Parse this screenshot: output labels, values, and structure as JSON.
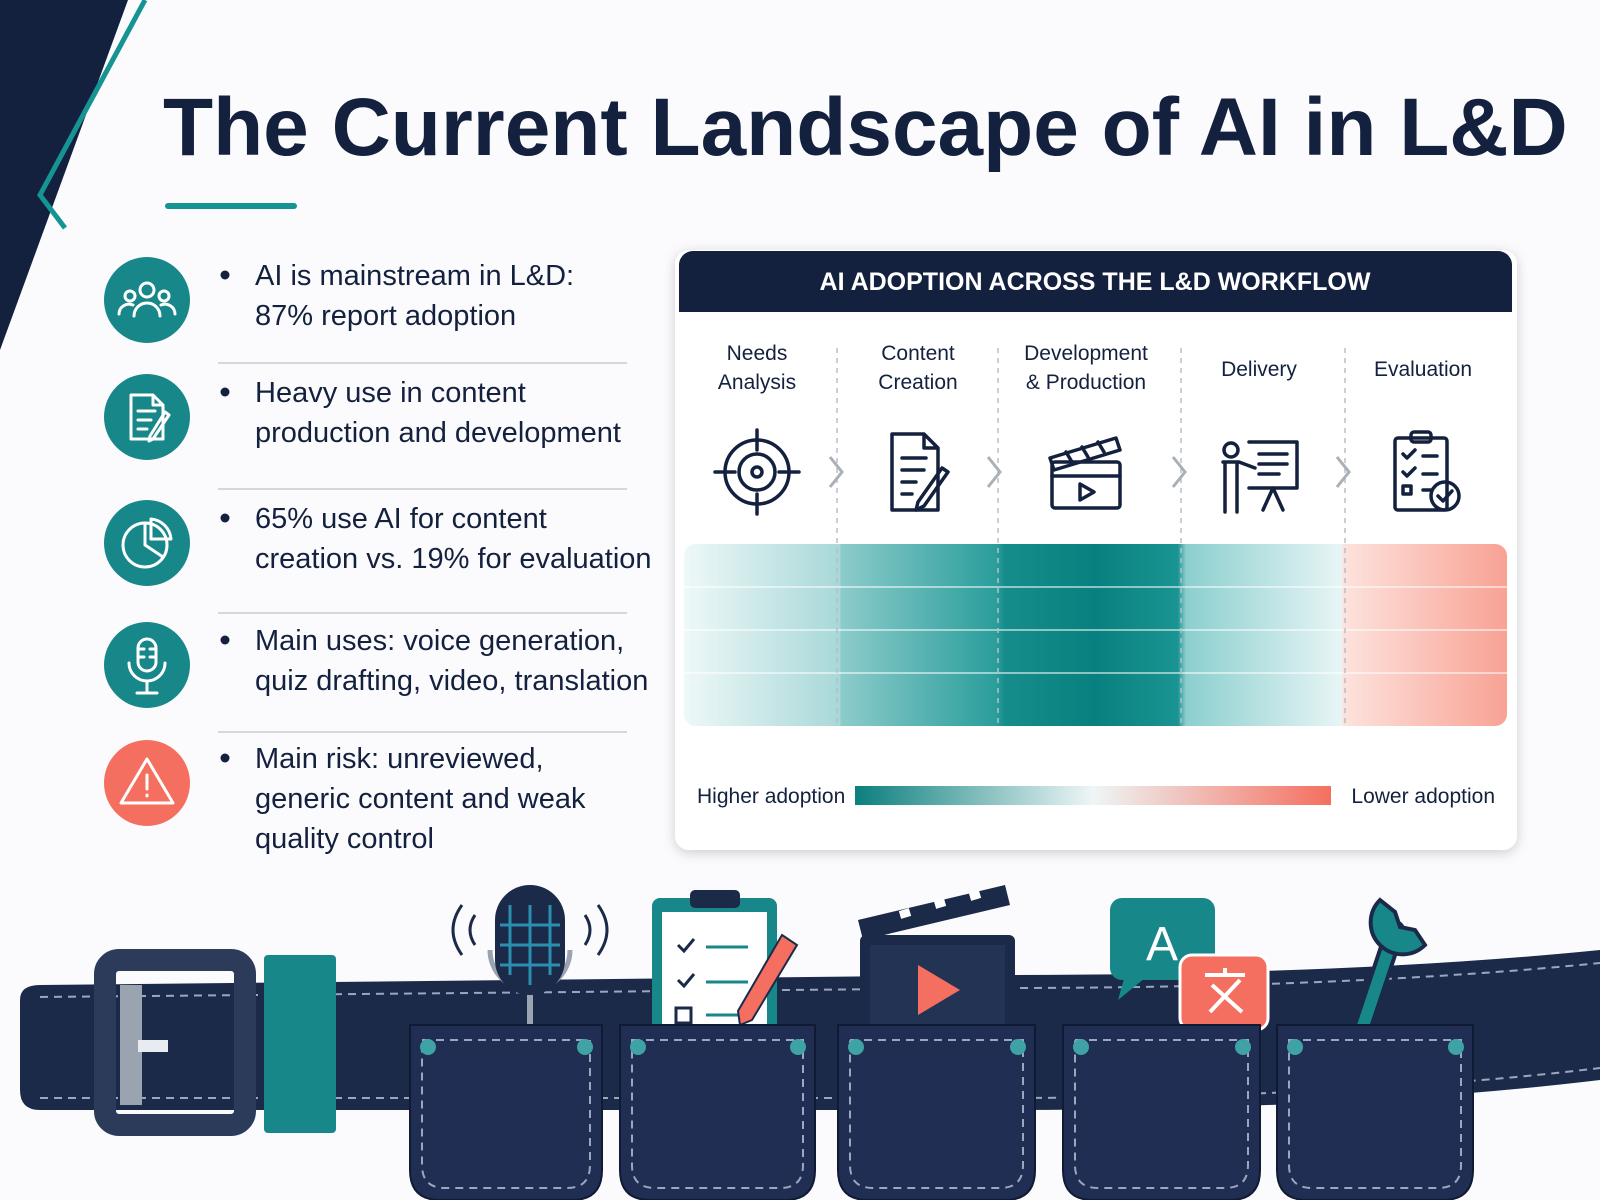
{
  "header": {
    "title": "The Current Landscape of AI in L&D"
  },
  "bullets": [
    {
      "lines": [
        "AI is mainstream in L&D:",
        "87% report adoption"
      ]
    },
    {
      "lines": [
        "Heavy use in content",
        "production and development"
      ]
    },
    {
      "lines": [
        "65% use AI for content",
        "creation vs. 19% for evaluation"
      ]
    },
    {
      "lines": [
        "Main uses: voice generation,",
        "quiz drafting, video, translation"
      ]
    },
    {
      "lines": [
        "Main risk: unreviewed,",
        "generic content and weak",
        "quality control"
      ]
    }
  ],
  "panel": {
    "title": "AI ADOPTION ACROSS THE L&D WORKFLOW",
    "stages": [
      {
        "lines": [
          "Needs",
          "Analysis"
        ]
      },
      {
        "lines": [
          "Content",
          "Creation"
        ]
      },
      {
        "lines": [
          "Development",
          "& Production"
        ]
      },
      {
        "lines": [
          "Delivery"
        ]
      },
      {
        "lines": [
          "Evaluation"
        ]
      }
    ],
    "legend": {
      "high": "Higher adoption",
      "low": "Lower adoption"
    }
  }
}
